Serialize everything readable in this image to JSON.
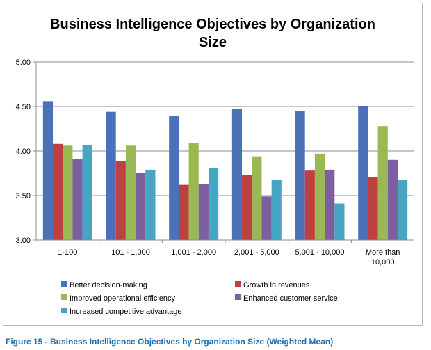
{
  "caption": "Figure 15 - Business Intelligence Objectives by Organization Size (Weighted Mean)",
  "chart_data": {
    "type": "bar",
    "title": "Business Intelligence Objectives by Organization Size",
    "xlabel": "",
    "ylabel": "",
    "ylim": [
      3.0,
      5.0
    ],
    "yticks": [
      "3.00",
      "3.50",
      "4.00",
      "4.50",
      "5.00"
    ],
    "grid": true,
    "legend_position": "bottom",
    "categories": [
      "1-100",
      "101 - 1,000",
      "1,001 - 2,000",
      "2,001 - 5,000",
      "5,001 - 10,000",
      "More than 10,000"
    ],
    "series": [
      {
        "name": "Better decision-making",
        "color": "#4a72b8",
        "values": [
          4.56,
          4.44,
          4.39,
          4.47,
          4.45,
          4.5
        ]
      },
      {
        "name": "Growth in revenues",
        "color": "#bd4140",
        "values": [
          4.08,
          3.89,
          3.62,
          3.73,
          3.78,
          3.71
        ]
      },
      {
        "name": "Improved operational efficiency",
        "color": "#98b954",
        "values": [
          4.06,
          4.06,
          4.09,
          3.94,
          3.97,
          4.28
        ]
      },
      {
        "name": "Enhanced customer service",
        "color": "#7c5f9e",
        "values": [
          3.91,
          3.75,
          3.63,
          3.49,
          3.79,
          3.9
        ]
      },
      {
        "name": "Increased competitive advantage",
        "color": "#45a5c2",
        "values": [
          4.07,
          3.79,
          3.81,
          3.68,
          3.41,
          3.68
        ]
      }
    ]
  }
}
